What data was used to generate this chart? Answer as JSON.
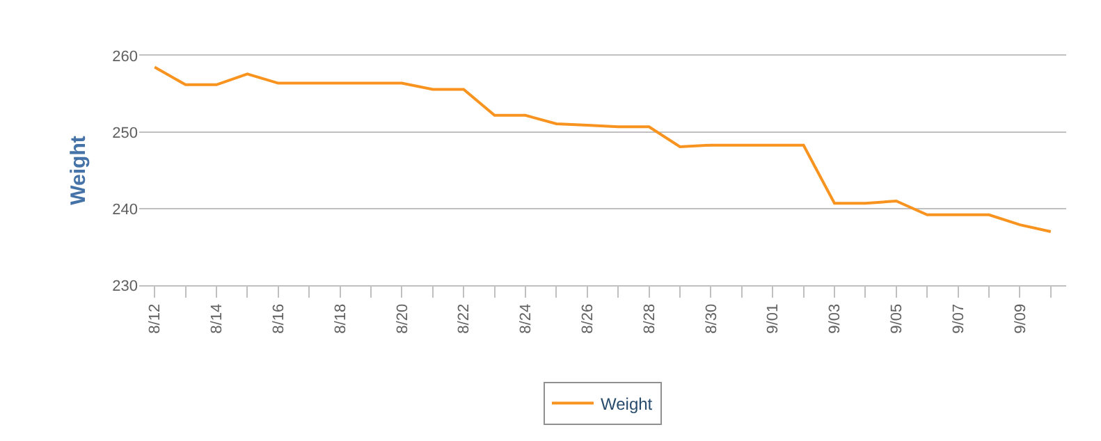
{
  "chart_data": {
    "type": "line",
    "ylabel": "Weight",
    "legend": "bottom",
    "grid": "y",
    "marker": "none",
    "line_style": "solid",
    "x": [
      "--08-12",
      "--08-13",
      "--08-14",
      "--08-15",
      "--08-16",
      "--08-17",
      "--08-18",
      "--08-19",
      "--08-20",
      "--08-21",
      "--08-22",
      "--08-23",
      "--08-24",
      "--08-25",
      "--08-26",
      "--08-27",
      "--08-28",
      "--08-29",
      "--08-30",
      "--08-31",
      "--09-01",
      "--09-02",
      "--09-03",
      "--09-04",
      "--09-05",
      "--09-06",
      "--09-07",
      "--09-08",
      "--09-09",
      "--09-10"
    ],
    "series": [
      {
        "name": "Weight",
        "color": "#f7931e",
        "values": [
          258.5,
          256.2,
          256.2,
          257.6,
          256.4,
          256.4,
          256.4,
          256.4,
          256.4,
          255.6,
          255.6,
          252.2,
          252.2,
          251.1,
          250.9,
          250.7,
          250.7,
          248.1,
          248.3,
          248.3,
          248.3,
          248.3,
          240.7,
          240.7,
          241.0,
          239.2,
          239.2,
          239.2,
          237.9,
          237.0
        ]
      }
    ],
    "xlim": [
      "--08-11T12:00",
      "--09-10T12:00"
    ],
    "xticks": [
      {
        "value": "--08-12",
        "label": "8/12"
      },
      {
        "value": "--08-13",
        "label": null
      },
      {
        "value": "--08-14",
        "label": "8/14"
      },
      {
        "value": "--08-15",
        "label": null
      },
      {
        "value": "--08-16",
        "label": "8/16"
      },
      {
        "value": "--08-17",
        "label": null
      },
      {
        "value": "--08-18",
        "label": "8/18"
      },
      {
        "value": "--08-19",
        "label": null
      },
      {
        "value": "--08-20",
        "label": "8/20"
      },
      {
        "value": "--08-21",
        "label": null
      },
      {
        "value": "--08-22",
        "label": "8/22"
      },
      {
        "value": "--08-23",
        "label": null
      },
      {
        "value": "--08-24",
        "label": "8/24"
      },
      {
        "value": "--08-25",
        "label": null
      },
      {
        "value": "--08-26",
        "label": "8/26"
      },
      {
        "value": "--08-27",
        "label": null
      },
      {
        "value": "--08-28",
        "label": "8/28"
      },
      {
        "value": "--08-29",
        "label": null
      },
      {
        "value": "--08-30",
        "label": "8/30"
      },
      {
        "value": "--08-31",
        "label": null
      },
      {
        "value": "--09-01",
        "label": "9/01"
      },
      {
        "value": "--09-02",
        "label": null
      },
      {
        "value": "--09-03",
        "label": "9/03"
      },
      {
        "value": "--09-04",
        "label": null
      },
      {
        "value": "--09-05",
        "label": "9/05"
      },
      {
        "value": "--09-06",
        "label": null
      },
      {
        "value": "--09-07",
        "label": "9/07"
      },
      {
        "value": "--09-08",
        "label": null
      },
      {
        "value": "--09-09",
        "label": "9/09"
      },
      {
        "value": "--09-10",
        "label": null
      }
    ],
    "ylim": [
      230,
      260
    ],
    "yticks": [
      230,
      240,
      250,
      260
    ]
  }
}
